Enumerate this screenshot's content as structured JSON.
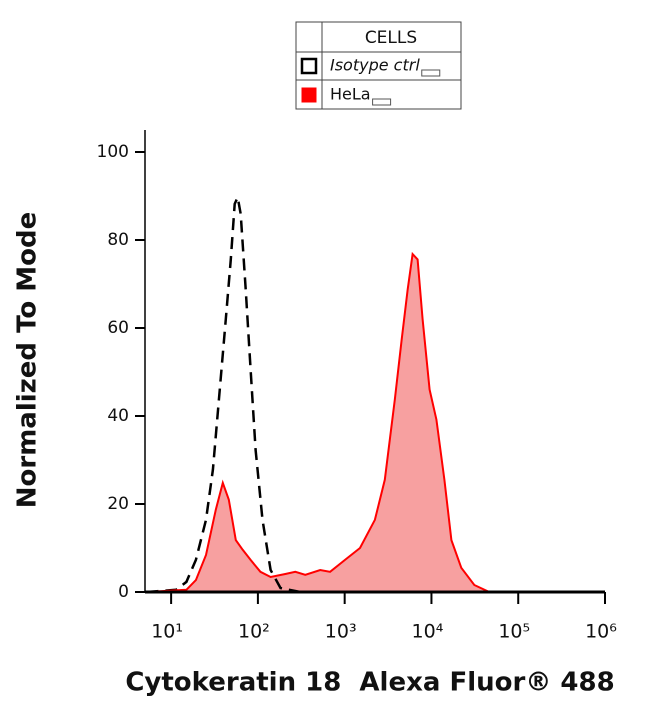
{
  "chart_data": {
    "type": "histogram-overlay",
    "x_label": "Cytokeratin 18  Alexa Fluor® 488",
    "y_label": "Normalized To Mode",
    "legend_title": "CELLS",
    "x_scale": "log",
    "xlim": [
      5,
      1000000
    ],
    "xticks": [
      {
        "value": 10,
        "label": "10¹"
      },
      {
        "value": 100,
        "label": "10²"
      },
      {
        "value": 1000,
        "label": "10³"
      },
      {
        "value": 10000,
        "label": "10⁴"
      },
      {
        "value": 100000,
        "label": "10⁵"
      },
      {
        "value": 1000000,
        "label": "10⁶"
      }
    ],
    "ylim": [
      0,
      105
    ],
    "yticks": [
      0,
      20,
      40,
      60,
      80,
      100
    ],
    "series": [
      {
        "name": "Isotype ctrl",
        "color": "#000000",
        "dashed": true,
        "x": [
          5.2,
          11.4,
          15,
          19.3,
          25.2,
          30.3,
          35.5,
          42.7,
          48.7,
          54.1,
          58.5,
          63.4,
          72.3,
          82.5,
          94.2,
          113,
          140,
          182,
          308,
          1000000
        ],
        "values": [
          0,
          0.5,
          2.3,
          7.3,
          16.4,
          27.8,
          43.7,
          62,
          75.6,
          88.2,
          89.7,
          85.9,
          68.8,
          50.6,
          32.3,
          16.4,
          5,
          0.9,
          0,
          0
        ]
      },
      {
        "name": "HeLa",
        "color": "#ff0000",
        "fill": "#f7a0a0",
        "x": [
          5.2,
          15,
          19.3,
          25.2,
          32.7,
          39.4,
          46.2,
          55.6,
          66.8,
          82.5,
          107,
          140,
          207,
          270,
          352,
          523,
          680,
          1010,
          1500,
          2230,
          2900,
          3780,
          4540,
          5320,
          6070,
          6930,
          7910,
          9510,
          11400,
          14100,
          17000,
          22100,
          31200,
          46400,
          1000000
        ],
        "values": [
          0,
          0.5,
          2.7,
          8.4,
          18.7,
          24.8,
          21,
          11.8,
          9.6,
          7.3,
          4.6,
          3.4,
          4.1,
          4.6,
          3.9,
          5,
          4.6,
          7.3,
          10,
          16.4,
          25.5,
          43.7,
          57.4,
          68.8,
          76.8,
          75.6,
          62,
          46,
          39.2,
          25.5,
          11.8,
          5.5,
          1.6,
          0,
          0
        ]
      }
    ]
  }
}
